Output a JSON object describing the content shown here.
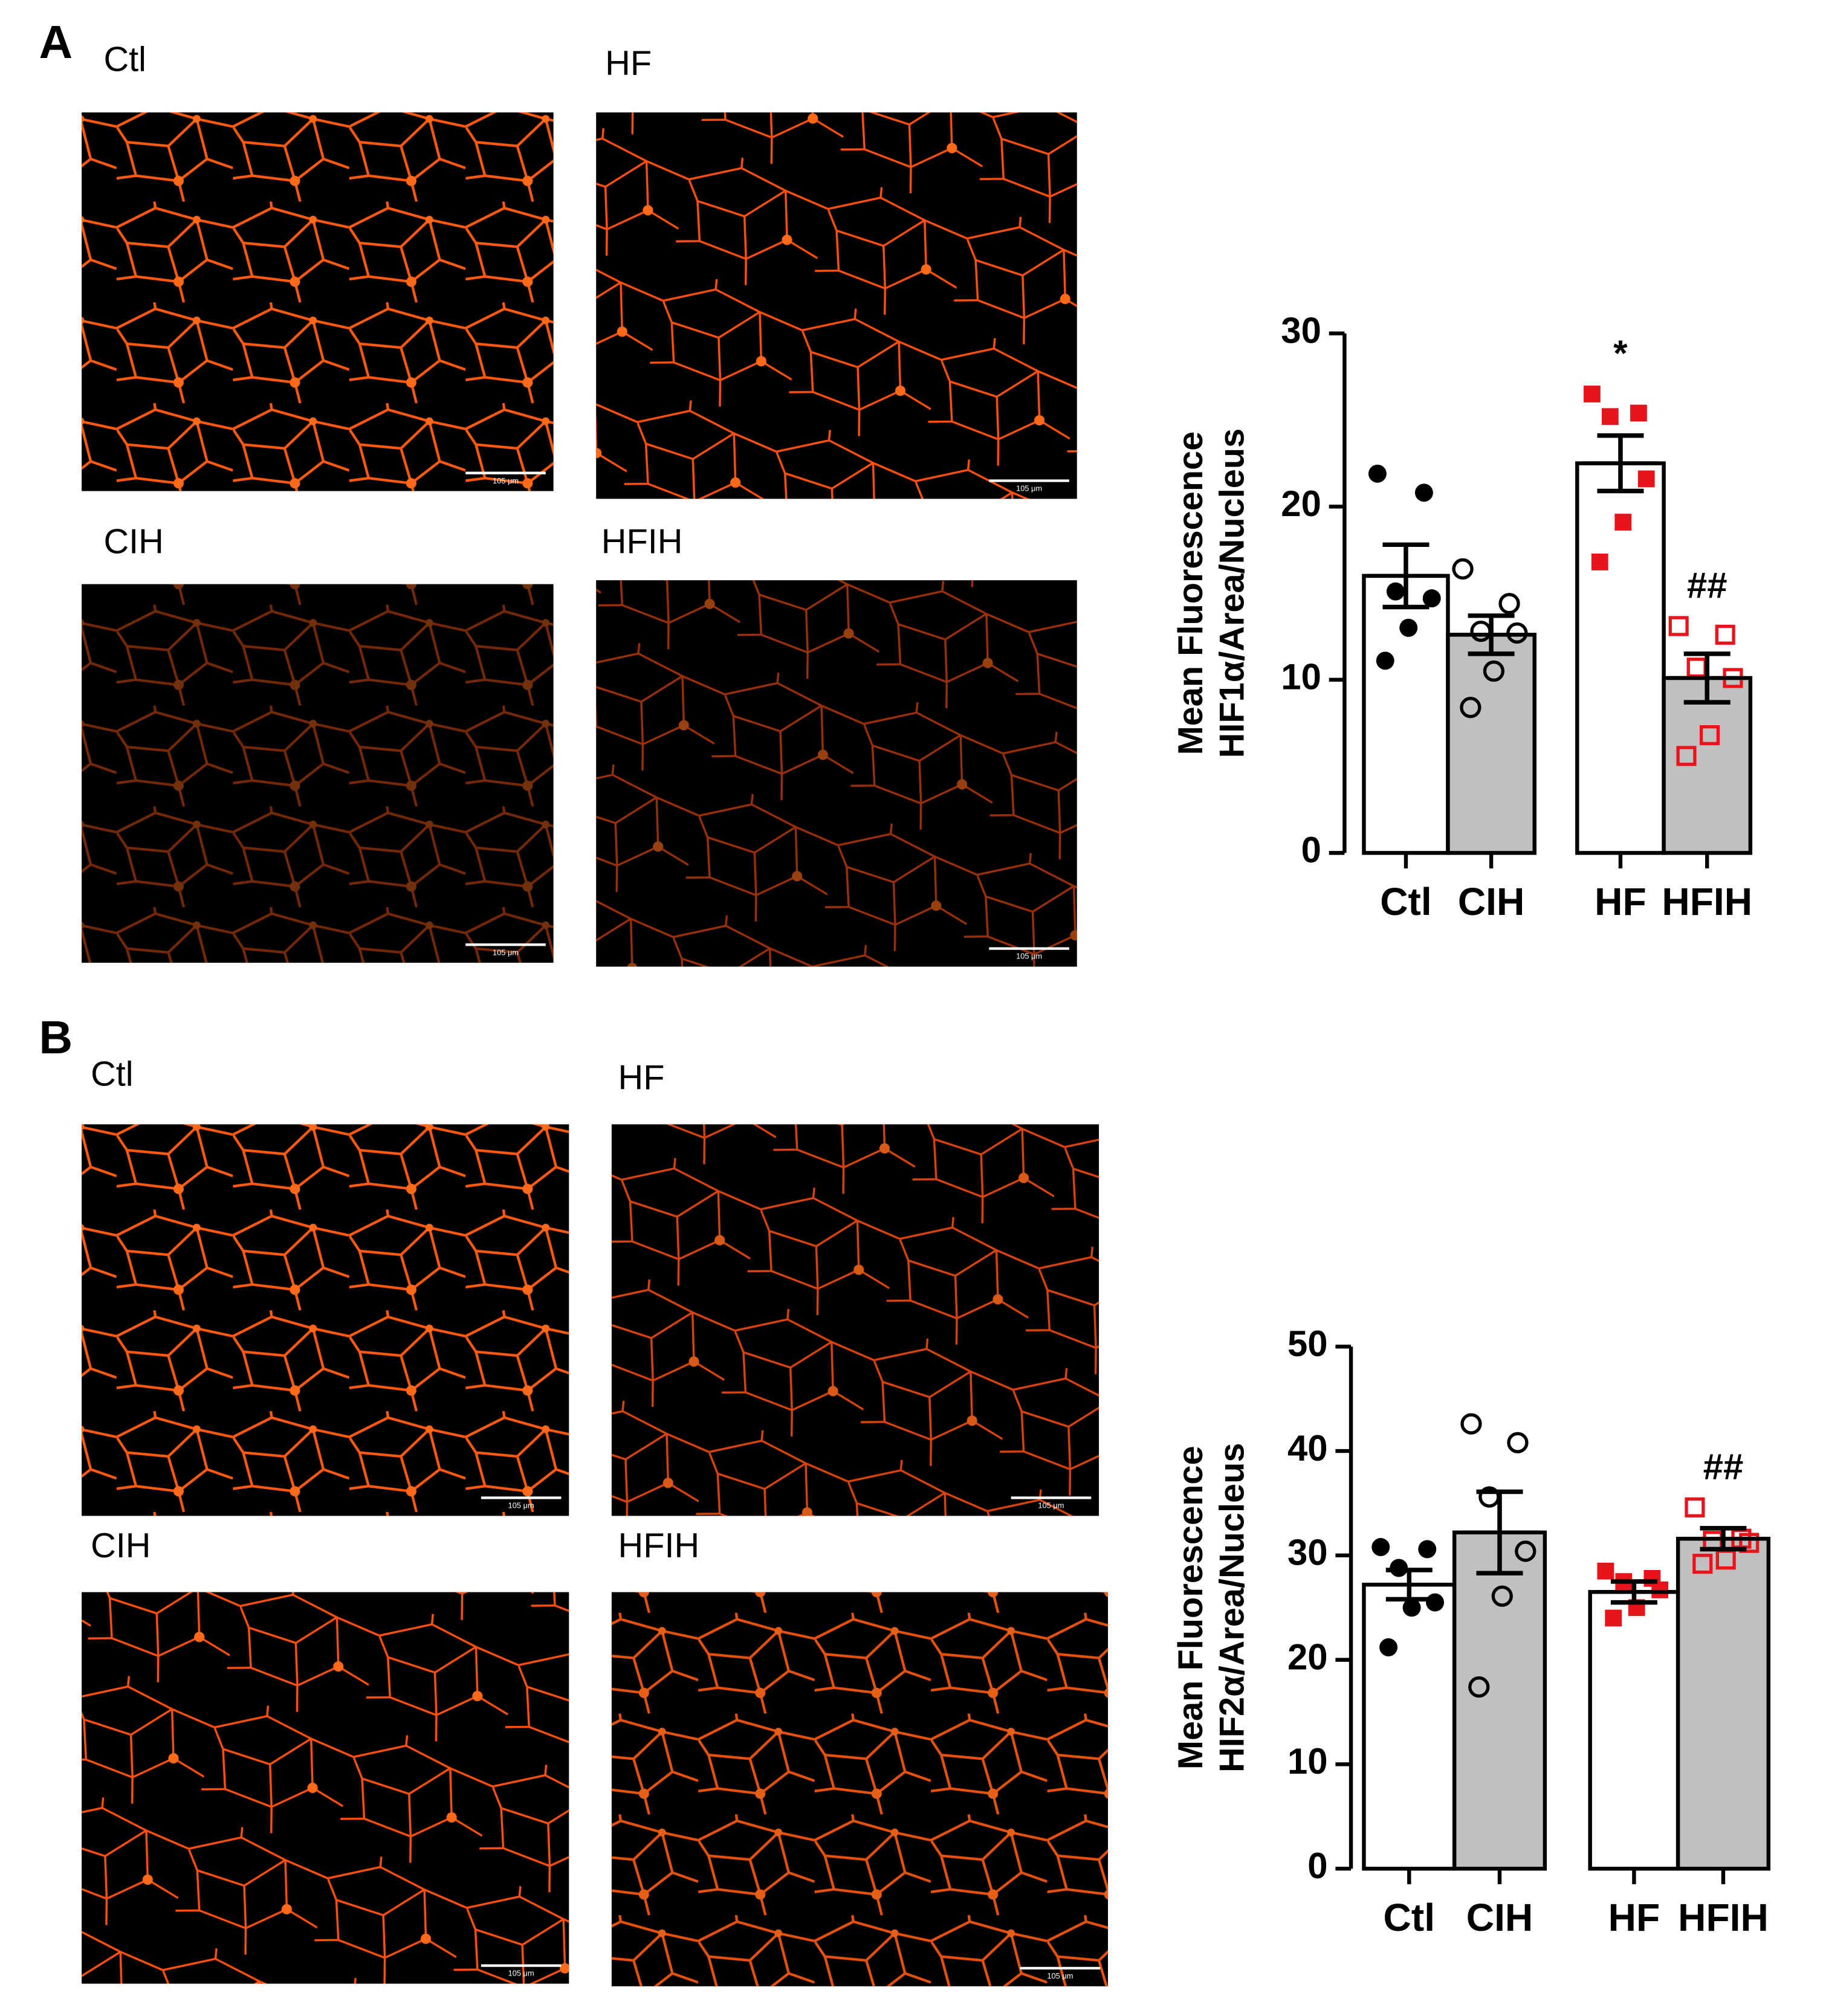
{
  "panels": [
    {
      "label": "A",
      "images": [
        "Ctl",
        "HF",
        "CIH",
        "HFIH"
      ]
    },
    {
      "label": "B",
      "images": [
        "Ctl",
        "HF",
        "CIH",
        "HFIH"
      ]
    }
  ],
  "scale_bar": "105 μm",
  "chart_data": [
    {
      "type": "bar",
      "ylabel": [
        "Mean Fluorescence",
        "HIF1α/Area/Nucleus"
      ],
      "categories": [
        "Ctl",
        "CIH",
        "HF",
        "HFIH"
      ],
      "values": [
        16.0,
        12.6,
        22.5,
        10.1
      ],
      "errors": [
        1.8,
        1.1,
        1.6,
        1.4
      ],
      "bar_colors": [
        "#ffffff",
        "#c0c0c0",
        "#ffffff",
        "#c0c0c0"
      ],
      "points": [
        [
          21.9,
          20.8,
          15.1,
          14.7,
          13.0,
          11.1
        ],
        [
          16.4,
          14.4,
          12.8,
          12.7,
          10.5,
          8.4
        ],
        [
          26.5,
          25.4,
          25.2,
          21.6,
          19.1,
          16.8
        ],
        [
          13.1,
          12.6,
          10.7,
          10.1,
          6.8,
          5.6
        ]
      ],
      "point_colors": [
        "#000000",
        "#000000",
        "#e8141b",
        "#e8141b"
      ],
      "point_shapes": [
        "circle",
        "circle",
        "square",
        "square"
      ],
      "point_filled": [
        true,
        false,
        true,
        false
      ],
      "annotations": [
        null,
        null,
        "*",
        "##"
      ],
      "ylim": [
        0,
        30
      ],
      "yticks": [
        0,
        10,
        20,
        30
      ]
    },
    {
      "type": "bar",
      "ylabel": [
        "Mean Fluorescence",
        "HIF2α/Area/Nucleus"
      ],
      "categories": [
        "Ctl",
        "CIH",
        "HF",
        "HFIH"
      ],
      "values": [
        27.2,
        32.2,
        26.5,
        31.6
      ],
      "errors": [
        1.4,
        3.9,
        1.0,
        1.0
      ],
      "bar_colors": [
        "#ffffff",
        "#c0c0c0",
        "#ffffff",
        "#c0c0c0"
      ],
      "points": [
        [
          30.8,
          30.6,
          28.8,
          25.5,
          25.0,
          21.2
        ],
        [
          42.6,
          40.8,
          35.6,
          30.4,
          26.1,
          17.4
        ],
        [
          28.5,
          27.8,
          27.5,
          26.7,
          25.0,
          24.0
        ],
        [
          34.6,
          31.6,
          31.4,
          31.2,
          29.6,
          29.2
        ]
      ],
      "point_colors": [
        "#000000",
        "#000000",
        "#e8141b",
        "#e8141b"
      ],
      "point_shapes": [
        "circle",
        "circle",
        "square",
        "square"
      ],
      "point_filled": [
        true,
        false,
        true,
        false
      ],
      "annotations": [
        null,
        null,
        null,
        "##"
      ],
      "ylim": [
        0,
        50
      ],
      "yticks": [
        0,
        10,
        20,
        30,
        40,
        50
      ]
    }
  ]
}
